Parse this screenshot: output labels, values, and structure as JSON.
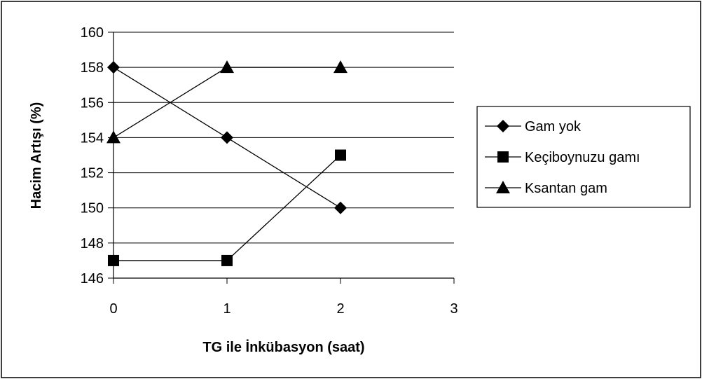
{
  "chart_data": {
    "type": "line",
    "title": "",
    "xlabel": "TG ile İnkübasyon (saat)",
    "ylabel": "Hacim Artışı (%)",
    "xlim": [
      0,
      3
    ],
    "ylim": [
      146,
      160
    ],
    "x_ticks": [
      "0",
      "1",
      "2",
      "3"
    ],
    "y_ticks": [
      "146",
      "148",
      "150",
      "152",
      "154",
      "156",
      "158",
      "160"
    ],
    "y_tick_values": [
      146,
      148,
      150,
      152,
      154,
      156,
      158,
      160
    ],
    "x_tick_values": [
      0,
      1,
      2,
      3
    ],
    "grid": "horizontal",
    "legend_position": "right",
    "series": [
      {
        "name": "Gam yok",
        "marker": "diamond",
        "x": [
          0,
          1,
          2
        ],
        "y": [
          158,
          154,
          150
        ]
      },
      {
        "name": "Keçiboynuzu gamı",
        "marker": "square",
        "x": [
          0,
          1,
          2
        ],
        "y": [
          147,
          147,
          153
        ]
      },
      {
        "name": "Ksantan gam",
        "marker": "triangle",
        "x": [
          0,
          1,
          2
        ],
        "y": [
          154,
          158,
          158
        ]
      }
    ],
    "colors": {
      "line": "#000000",
      "grid": "#000000",
      "background": "#ffffff"
    }
  }
}
